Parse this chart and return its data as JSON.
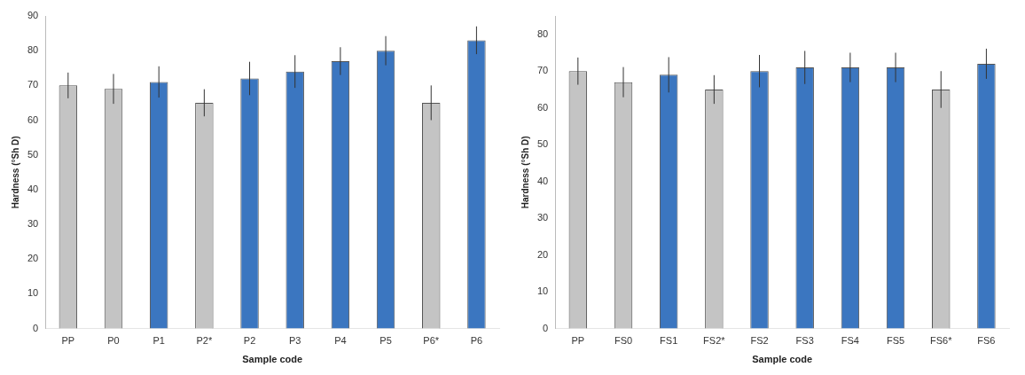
{
  "chart_data": [
    {
      "type": "bar",
      "xlabel": "Sample code",
      "ylabel": "Hardness (°Sh D)",
      "categories": [
        "PP",
        "P0",
        "P1",
        "P2*",
        "P2",
        "P3",
        "P4",
        "P5",
        "P6*",
        "P6"
      ],
      "values": [
        70,
        69,
        71,
        65,
        72,
        74,
        77,
        80,
        65,
        83
      ],
      "errors": [
        3.7,
        4.3,
        4.5,
        3.9,
        4.8,
        4.7,
        4.0,
        4.2,
        5.0,
        4.0
      ],
      "colors": [
        "#c4c4c4",
        "#c4c4c4",
        "#3b76c0",
        "#c4c4c4",
        "#3b76c0",
        "#3b76c0",
        "#3b76c0",
        "#3b76c0",
        "#c4c4c4",
        "#3b76c0"
      ],
      "ylim": [
        0,
        90
      ],
      "yticks": [
        0,
        10,
        20,
        30,
        40,
        50,
        60,
        70,
        80,
        90
      ],
      "grid": false,
      "legend": false
    },
    {
      "type": "bar",
      "xlabel": "Sample code",
      "ylabel": "Hardness (°Sh D)",
      "categories": [
        "PP",
        "FS0",
        "FS1",
        "FS2*",
        "FS2",
        "FS3",
        "FS4",
        "FS5",
        "FS6*",
        "FS6"
      ],
      "values": [
        70,
        67,
        69,
        65,
        70,
        71,
        71,
        71,
        65,
        72
      ],
      "errors": [
        3.7,
        4.1,
        4.8,
        3.9,
        4.4,
        4.5,
        4.0,
        4.0,
        5.0,
        4.1
      ],
      "colors": [
        "#c4c4c4",
        "#c4c4c4",
        "#3b76c0",
        "#c4c4c4",
        "#3b76c0",
        "#3b76c0",
        "#3b76c0",
        "#3b76c0",
        "#c4c4c4",
        "#3b76c0"
      ],
      "ylim": [
        0,
        85
      ],
      "yticks": [
        0,
        10,
        20,
        30,
        40,
        50,
        60,
        70,
        80
      ],
      "grid": false,
      "legend": false
    }
  ]
}
